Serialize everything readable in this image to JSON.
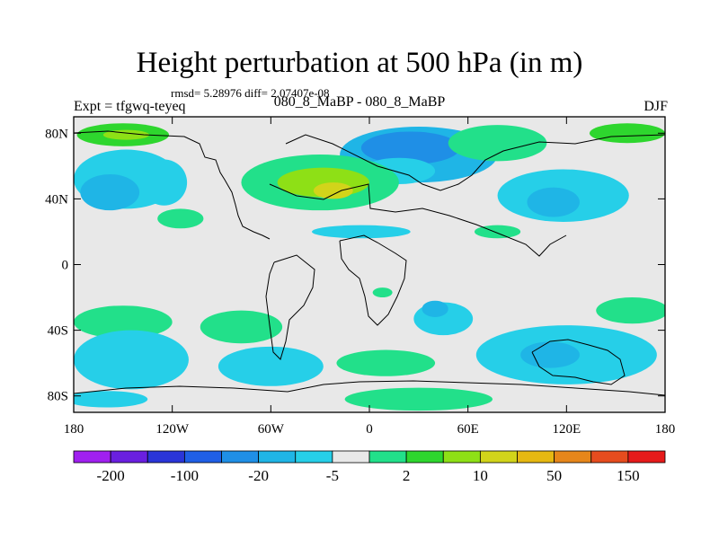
{
  "chart_data": {
    "type": "heatmap",
    "title": "Height perturbation at 500 hPa (in m)",
    "stats": "rmsd= 5.28976 diff= 2.07407e-08",
    "left_label": "Expt = tfgwq-teyeq",
    "center_label": "080_8_MaBP - 080_8_MaBP",
    "right_label": "DJF",
    "x_ticks": [
      "180",
      "120W",
      "60W",
      "0",
      "60E",
      "120E",
      "180"
    ],
    "x_tick_values": [
      -180,
      -120,
      -60,
      0,
      60,
      120,
      180
    ],
    "y_ticks": [
      "80N",
      "40N",
      "0",
      "40S",
      "80S"
    ],
    "y_tick_values": [
      80,
      40,
      0,
      -40,
      -80
    ],
    "xlim": [
      -180,
      180
    ],
    "ylim": [
      -90,
      90
    ],
    "colorbar": {
      "labels": [
        "-200",
        "-100",
        "-20",
        "-5",
        "2",
        "10",
        "50",
        "150"
      ],
      "colors": [
        "#a020f0",
        "#6a1fe0",
        "#2a35d8",
        "#1f5fe6",
        "#1f8fe6",
        "#1fb5e6",
        "#26cfe8",
        "#e8e8e8",
        "#22e08a",
        "#2ed62e",
        "#8ee016",
        "#d2d41a",
        "#e6b812",
        "#e6861a",
        "#e64c1e",
        "#e61a1a"
      ]
    },
    "regions": [
      {
        "level": 5,
        "shape": "ellipse",
        "lon": 30,
        "lat": 67,
        "rlon": 48,
        "rlat": 17
      },
      {
        "level": 4,
        "shape": "ellipse",
        "lon": 25,
        "lat": 71,
        "rlon": 30,
        "rlat": 10
      },
      {
        "level": 6,
        "shape": "ellipse",
        "lon": 18,
        "lat": 57,
        "rlon": 22,
        "rlat": 8
      },
      {
        "level": 6,
        "shape": "ellipse",
        "lon": -148,
        "lat": 52,
        "rlon": 32,
        "rlat": 18
      },
      {
        "level": 5,
        "shape": "ellipse",
        "lon": -158,
        "lat": 44,
        "rlon": 18,
        "rlat": 11
      },
      {
        "level": 6,
        "shape": "ellipse",
        "lon": 118,
        "lat": 42,
        "rlon": 40,
        "rlat": 16
      },
      {
        "level": 5,
        "shape": "ellipse",
        "lon": 112,
        "lat": 38,
        "rlon": 16,
        "rlat": 9
      },
      {
        "level": 6,
        "shape": "ellipse",
        "lon": -125,
        "lat": 50,
        "rlon": 14,
        "rlat": 14
      },
      {
        "level": 8,
        "shape": "ellipse",
        "lon": -30,
        "lat": 50,
        "rlon": 48,
        "rlat": 17
      },
      {
        "level": 10,
        "shape": "ellipse",
        "lon": -28,
        "lat": 50,
        "rlon": 28,
        "rlat": 9
      },
      {
        "level": 11,
        "shape": "ellipse",
        "lon": -22,
        "lat": 45,
        "rlon": 12,
        "rlat": 5
      },
      {
        "level": 9,
        "shape": "ellipse",
        "lon": -150,
        "lat": 79,
        "rlon": 28,
        "rlat": 7
      },
      {
        "level": 10,
        "shape": "ellipse",
        "lon": -148,
        "lat": 79,
        "rlon": 14,
        "rlat": 3
      },
      {
        "level": 9,
        "shape": "ellipse",
        "lon": 157,
        "lat": 80,
        "rlon": 23,
        "rlat": 6
      },
      {
        "level": 8,
        "shape": "ellipse",
        "lon": 78,
        "lat": 74,
        "rlon": 30,
        "rlat": 11
      },
      {
        "level": 8,
        "shape": "ellipse",
        "lon": -115,
        "lat": 28,
        "rlon": 14,
        "rlat": 6
      },
      {
        "level": 6,
        "shape": "ellipse",
        "lon": -5,
        "lat": 20,
        "rlon": 30,
        "rlat": 4
      },
      {
        "level": 8,
        "shape": "ellipse",
        "lon": 78,
        "lat": 20,
        "rlon": 14,
        "rlat": 4
      },
      {
        "level": 8,
        "shape": "ellipse",
        "lon": -150,
        "lat": -35,
        "rlon": 30,
        "rlat": 10
      },
      {
        "level": 8,
        "shape": "ellipse",
        "lon": -78,
        "lat": -38,
        "rlon": 25,
        "rlat": 10
      },
      {
        "level": 8,
        "shape": "ellipse",
        "lon": 160,
        "lat": -28,
        "rlon": 22,
        "rlat": 8
      },
      {
        "level": 6,
        "shape": "ellipse",
        "lon": -145,
        "lat": -58,
        "rlon": 35,
        "rlat": 18
      },
      {
        "level": 6,
        "shape": "ellipse",
        "lon": -60,
        "lat": -62,
        "rlon": 32,
        "rlat": 12
      },
      {
        "level": 6,
        "shape": "ellipse",
        "lon": 120,
        "lat": -55,
        "rlon": 55,
        "rlat": 18
      },
      {
        "level": 5,
        "shape": "ellipse",
        "lon": 110,
        "lat": -55,
        "rlon": 18,
        "rlat": 8
      },
      {
        "level": 6,
        "shape": "ellipse",
        "lon": 45,
        "lat": -33,
        "rlon": 18,
        "rlat": 10
      },
      {
        "level": 5,
        "shape": "ellipse",
        "lon": 40,
        "lat": -27,
        "rlon": 8,
        "rlat": 5
      },
      {
        "level": 8,
        "shape": "ellipse",
        "lon": 10,
        "lat": -60,
        "rlon": 30,
        "rlat": 8
      },
      {
        "level": 8,
        "shape": "ellipse",
        "lon": 30,
        "lat": -82,
        "rlon": 45,
        "rlat": 7
      },
      {
        "level": 6,
        "shape": "ellipse",
        "lon": -160,
        "lat": -82,
        "rlon": 25,
        "rlat": 5
      },
      {
        "level": 8,
        "shape": "ellipse",
        "lon": 8,
        "lat": -17,
        "rlon": 6,
        "rlat": 3
      }
    ]
  }
}
